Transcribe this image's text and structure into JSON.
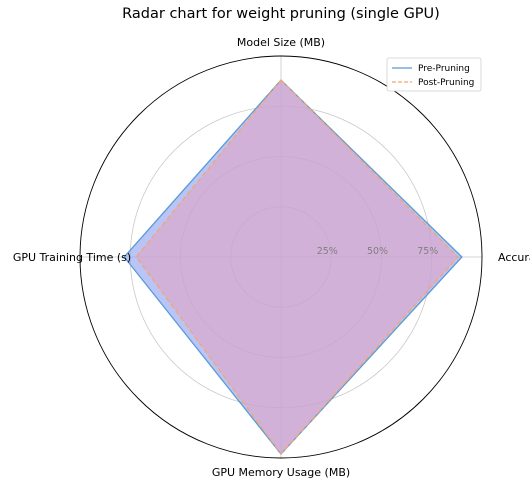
{
  "chart_data": {
    "type": "radar",
    "title": "Radar chart for weight pruning (single GPU)",
    "axes": [
      "Model Size (MB)",
      "Accuracy",
      "GPU Memory Usage (MB)",
      "GPU Training Time (s)"
    ],
    "rlim": [
      0,
      100
    ],
    "rticks": [
      25,
      50,
      75
    ],
    "rtick_labels": [
      "25%",
      "50%",
      "75%"
    ],
    "grid": true,
    "legend_position": "top-right",
    "series": [
      {
        "name": "Pre-Pruning",
        "values": [
          88,
          90,
          98,
          78
        ],
        "line_color": "#5a9bd5",
        "fill_color": "#8a9cf2",
        "line_style": "solid"
      },
      {
        "name": "Post-Pruning",
        "values": [
          88,
          88,
          98,
          72
        ],
        "line_color": "#f4a66a",
        "fill_color": "#e3a5c3",
        "line_style": "dashed"
      }
    ]
  }
}
